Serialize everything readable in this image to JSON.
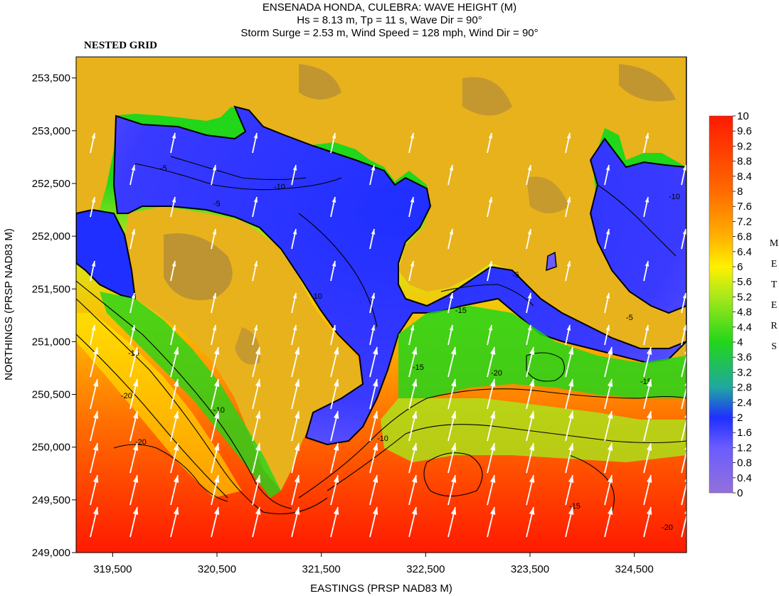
{
  "chart_data": {
    "type": "heatmap",
    "title": "ENSENADA HONDA, CULEBRA: WAVE HEIGHT (M)",
    "subtitle_lines": [
      "Hs = 8.13 m, Tp = 11 s, Wave Dir = 90°",
      "Storm Surge = 2.53 m, Wind Speed = 128 mph, Wind Dir = 90°"
    ],
    "panel_label": "NESTED GRID",
    "xlabel": "EASTINGS (PRSP NAD83 M)",
    "ylabel": "NORTHINGS (PRSP NAD83 M)",
    "xlim": [
      319150,
      325000
    ],
    "ylim": [
      249000,
      253700
    ],
    "x_ticks": [
      319500,
      320500,
      321500,
      322500,
      323500,
      324500
    ],
    "x_tick_labels": [
      "319,500",
      "320,500",
      "321,500",
      "322,500",
      "323,500",
      "324,500"
    ],
    "y_ticks": [
      249000,
      249500,
      250000,
      250500,
      251000,
      251500,
      252000,
      252500,
      253000,
      253500
    ],
    "y_tick_labels": [
      "249,000",
      "249,500",
      "250,000",
      "250,500",
      "251,000",
      "251,500",
      "252,000",
      "252,500",
      "253,000",
      "253,500"
    ],
    "colorbar": {
      "min": 0,
      "max": 10,
      "tick_labels": [
        "10",
        "9.6",
        "9.2",
        "8.8",
        "8.4",
        "8",
        "7.6",
        "7.2",
        "6.8",
        "6.4",
        "6",
        "5.6",
        "5.2",
        "4.8",
        "4.4",
        "4",
        "3.6",
        "3.2",
        "2.8",
        "2.4",
        "2",
        "1.6",
        "1.2",
        "0.8",
        "0.4",
        "0"
      ],
      "title_letters": [
        "M",
        "E",
        "T",
        "E",
        "R",
        "S"
      ],
      "stops": [
        {
          "value": 0,
          "color": "#9370db"
        },
        {
          "value": 1.2,
          "color": "#6a5cff"
        },
        {
          "value": 2,
          "color": "#1f2fff"
        },
        {
          "value": 2.8,
          "color": "#1fa8a0"
        },
        {
          "value": 4,
          "color": "#22d61a"
        },
        {
          "value": 5.2,
          "color": "#a8e81a"
        },
        {
          "value": 6,
          "color": "#fff000"
        },
        {
          "value": 6.8,
          "color": "#ffb000"
        },
        {
          "value": 8,
          "color": "#ff6a00"
        },
        {
          "value": 10,
          "color": "#ff1a00"
        }
      ]
    },
    "colors": {
      "land": "#e8b21c",
      "land_high": "#b08a3a",
      "contour": "#000000",
      "arrow": "#ffffff"
    },
    "depth_contour_labels": [
      "-5",
      "-10",
      "-15",
      "-20"
    ],
    "wave_direction_arrows": "northward, shown as white vectors over water"
  }
}
